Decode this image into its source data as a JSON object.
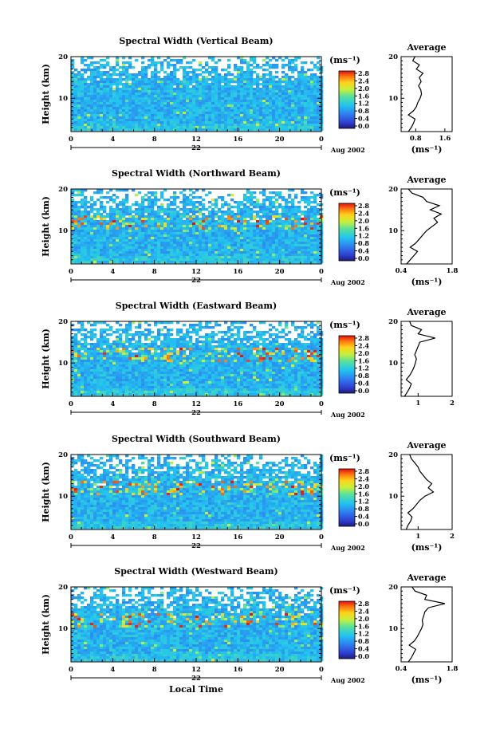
{
  "colorbar": {
    "unit_label": "(ms⁻¹)",
    "ticks": [
      "2.8",
      "2.4",
      "2.0",
      "1.6",
      "1.2",
      "0.8",
      "0.4",
      "0.0"
    ],
    "range": [
      0.0,
      2.8
    ]
  },
  "chart_data": [
    {
      "type": "heatmap",
      "title": "Spectral Width (Vertical Beam)",
      "ylabel": "Height (km)",
      "ylim": [
        2,
        20
      ],
      "ytick_labels": [
        "20",
        "10"
      ],
      "xlim": [
        0,
        24
      ],
      "xtick_labels": [
        "0",
        "4",
        "8",
        "12",
        "16",
        "20",
        "0"
      ],
      "date_number": "22",
      "date_label": "Aug 2002",
      "xlabel": "",
      "profile": {
        "title": "Average",
        "xlabel": "(ms⁻¹)",
        "xlim": [
          0.4,
          1.8
        ],
        "xtick_labels": [
          "0.8",
          "1.6"
        ],
        "ytick_labels": [
          "20",
          "10"
        ],
        "heights": [
          2,
          3,
          4,
          5,
          6,
          7,
          8,
          9,
          10,
          11,
          12,
          13,
          14,
          15,
          16,
          17,
          18,
          19,
          20
        ],
        "values": [
          0.6,
          0.68,
          0.74,
          0.78,
          0.6,
          0.74,
          0.82,
          0.86,
          0.92,
          0.96,
          0.94,
          0.88,
          0.95,
          0.9,
          1.0,
          0.82,
          0.9,
          0.72,
          0.78
        ]
      }
    },
    {
      "type": "heatmap",
      "title": "Spectral Width (Northward Beam)",
      "ylabel": "Height (km)",
      "ylim": [
        2,
        20
      ],
      "ytick_labels": [
        "20",
        "10"
      ],
      "xlim": [
        0,
        24
      ],
      "xtick_labels": [
        "0",
        "4",
        "8",
        "12",
        "16",
        "20",
        "0"
      ],
      "date_number": "22",
      "date_label": "Aug 2002",
      "xlabel": "",
      "profile": {
        "title": "Average",
        "xlabel": "(ms⁻¹)",
        "xlim": [
          0.4,
          1.8
        ],
        "xtick_labels": [
          "0.4",
          "1.8"
        ],
        "ytick_labels": [
          "20",
          "10"
        ],
        "heights": [
          2,
          3,
          4,
          5,
          6,
          7,
          8,
          9,
          10,
          11,
          12,
          13,
          14,
          15,
          16,
          17,
          18,
          19,
          20
        ],
        "values": [
          0.55,
          0.65,
          0.75,
          0.85,
          0.65,
          0.8,
          0.9,
          1.0,
          1.1,
          1.25,
          1.4,
          1.3,
          1.5,
          1.2,
          1.45,
          1.1,
          1.0,
          0.7,
          0.6
        ]
      }
    },
    {
      "type": "heatmap",
      "title": "Spectral Width (Eastward Beam)",
      "ylabel": "Height (km)",
      "ylim": [
        2,
        20
      ],
      "ytick_labels": [
        "20",
        "10"
      ],
      "xlim": [
        0,
        24
      ],
      "xtick_labels": [
        "0",
        "4",
        "8",
        "12",
        "16",
        "20",
        "0"
      ],
      "date_number": "22",
      "date_label": "Aug 2002",
      "xlabel": "",
      "profile": {
        "title": "Average",
        "xlabel": "",
        "xlim": [
          0.5,
          2.0
        ],
        "xtick_labels": [
          "1",
          "2"
        ],
        "ytick_labels": [
          "20",
          "10"
        ],
        "heights": [
          2,
          3,
          4,
          5,
          6,
          7,
          8,
          9,
          10,
          11,
          12,
          13,
          14,
          15,
          16,
          17,
          18,
          19,
          20
        ],
        "values": [
          0.6,
          0.68,
          0.75,
          0.8,
          0.65,
          0.75,
          0.82,
          0.88,
          0.92,
          0.95,
          0.9,
          0.95,
          1.0,
          1.05,
          1.5,
          1.0,
          1.1,
          0.8,
          0.75
        ]
      }
    },
    {
      "type": "heatmap",
      "title": "Spectral Width (Southward Beam)",
      "ylabel": "Height (km)",
      "ylim": [
        2,
        20
      ],
      "ytick_labels": [
        "20",
        "10"
      ],
      "xlim": [
        0,
        24
      ],
      "xtick_labels": [
        "0",
        "4",
        "8",
        "12",
        "16",
        "20",
        "0"
      ],
      "date_number": "22",
      "date_label": "Aug 2002",
      "xlabel": "",
      "profile": {
        "title": "Average",
        "xlabel": "(ms⁻¹)",
        "xlim": [
          0.5,
          2.0
        ],
        "xtick_labels": [
          "1",
          "2"
        ],
        "ytick_labels": [
          "20",
          "10"
        ],
        "heights": [
          2,
          3,
          4,
          5,
          6,
          7,
          8,
          9,
          10,
          11,
          12,
          13,
          14,
          15,
          16,
          17,
          18,
          19,
          20
        ],
        "values": [
          0.65,
          0.7,
          0.78,
          0.82,
          0.7,
          0.85,
          0.95,
          1.05,
          1.2,
          1.45,
          1.3,
          1.4,
          1.25,
          1.15,
          1.05,
          1.0,
          0.9,
          0.8,
          0.75
        ]
      }
    },
    {
      "type": "heatmap",
      "title": "Spectral Width (Westward Beam)",
      "ylabel": "Height (km)",
      "ylim": [
        2,
        20
      ],
      "ytick_labels": [
        "20",
        "10"
      ],
      "xlim": [
        0,
        24
      ],
      "xtick_labels": [
        "0",
        "4",
        "8",
        "12",
        "16",
        "20",
        "0"
      ],
      "date_number": "22",
      "date_label": "Aug 2002",
      "xlabel": "Local Time",
      "profile": {
        "title": "Average",
        "xlabel": "(ms⁻¹)",
        "xlim": [
          0.4,
          1.8
        ],
        "xtick_labels": [
          "0.4",
          "1.8"
        ],
        "ytick_labels": [
          "20",
          "10"
        ],
        "heights": [
          2,
          3,
          4,
          5,
          6,
          7,
          8,
          9,
          10,
          11,
          12,
          13,
          14,
          15,
          16,
          17,
          18,
          19,
          20
        ],
        "values": [
          0.6,
          0.68,
          0.74,
          0.8,
          0.62,
          0.76,
          0.84,
          0.9,
          0.96,
          1.0,
          0.98,
          1.02,
          1.05,
          1.15,
          1.6,
          1.05,
          1.1,
          0.78,
          0.7
        ]
      }
    }
  ]
}
